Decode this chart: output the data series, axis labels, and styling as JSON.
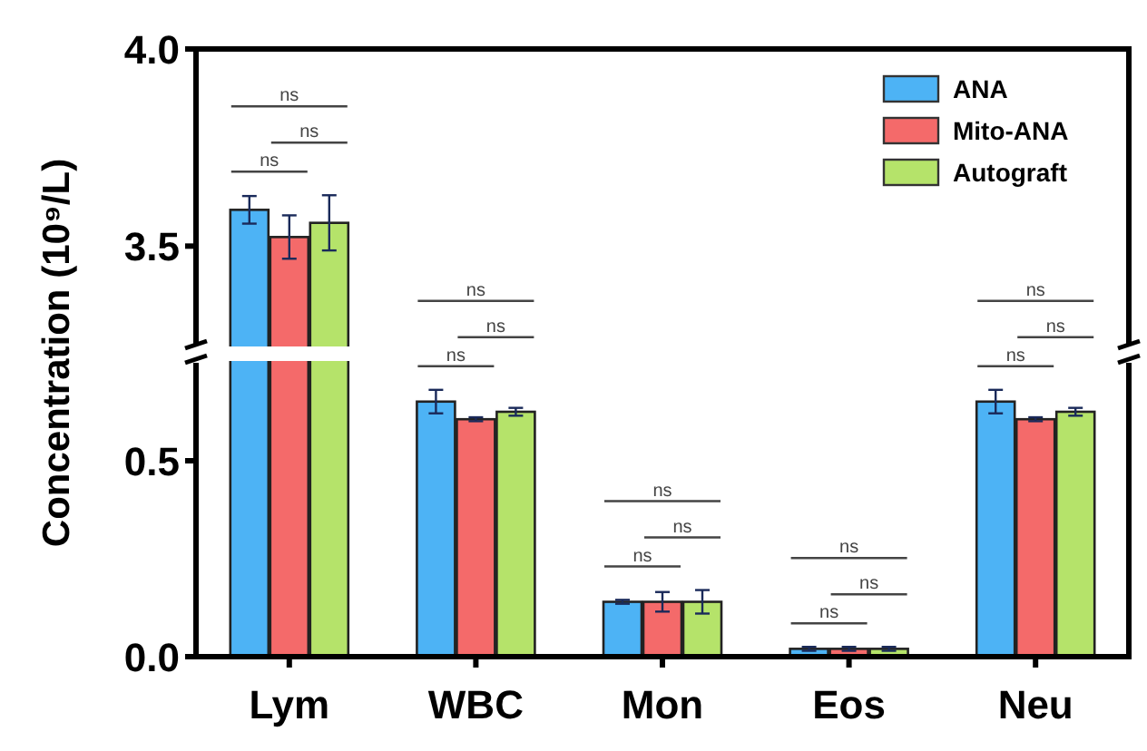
{
  "chart_data": [
    {
      "type": "bar",
      "categories": [
        null,
        null,
        null,
        null,
        null
      ],
      "ylim": [
        3.25,
        4.0
      ],
      "yticks": [
        {
          "value": 3.5,
          "label": "3.5"
        },
        {
          "value": 4.0,
          "label": "4.0"
        }
      ],
      "tick_labels": "y",
      "legend": "top right",
      "annotations": [
        "ns",
        "ns",
        "ns"
      ],
      "series": [
        {
          "name": "ANA",
          "color": "#4db3f5",
          "values": [
            3.592,
            null,
            null,
            null,
            null
          ],
          "errors": [
            0.035,
            null,
            null,
            null,
            null
          ]
        },
        {
          "name": "Mito-ANA",
          "color": "#f46a6a",
          "values": [
            3.523,
            null,
            null,
            null,
            null
          ],
          "errors": [
            0.055,
            null,
            null,
            null,
            null
          ]
        },
        {
          "name": "Autograft",
          "color": "#b5e36a",
          "values": [
            3.559,
            null,
            null,
            null,
            null
          ],
          "errors": [
            0.07,
            null,
            null,
            null,
            null
          ]
        }
      ]
    },
    {
      "type": "bar",
      "categories": [
        "Lym",
        "WBC",
        "Mon",
        "Eos",
        "Neu"
      ],
      "ylim": [
        0,
        0.75
      ],
      "yticks": [
        {
          "value": 0,
          "label": "0.0"
        },
        {
          "value": 0.5,
          "label": "0.5"
        }
      ],
      "ylabel": "Concentration (10⁹/L)",
      "annotations": [
        "ns",
        "ns",
        "ns",
        "ns",
        "ns",
        "ns",
        "ns",
        "ns",
        "ns",
        "ns",
        "ns",
        "ns"
      ],
      "series": [
        {
          "color": "#4db3f5",
          "values": [
            null,
            0.651,
            0.14,
            0.02,
            0.651
          ],
          "errors": [
            null,
            0.03,
            0.005,
            0.005,
            0.03
          ]
        },
        {
          "color": "#f46a6a",
          "values": [
            null,
            0.606,
            0.14,
            0.02,
            0.606
          ],
          "errors": [
            null,
            0.005,
            0.025,
            0.005,
            0.005
          ]
        },
        {
          "color": "#b5e36a",
          "values": [
            null,
            0.625,
            0.14,
            0.02,
            0.625
          ],
          "errors": [
            null,
            0.01,
            0.03,
            0.005,
            0.01
          ]
        }
      ]
    }
  ]
}
